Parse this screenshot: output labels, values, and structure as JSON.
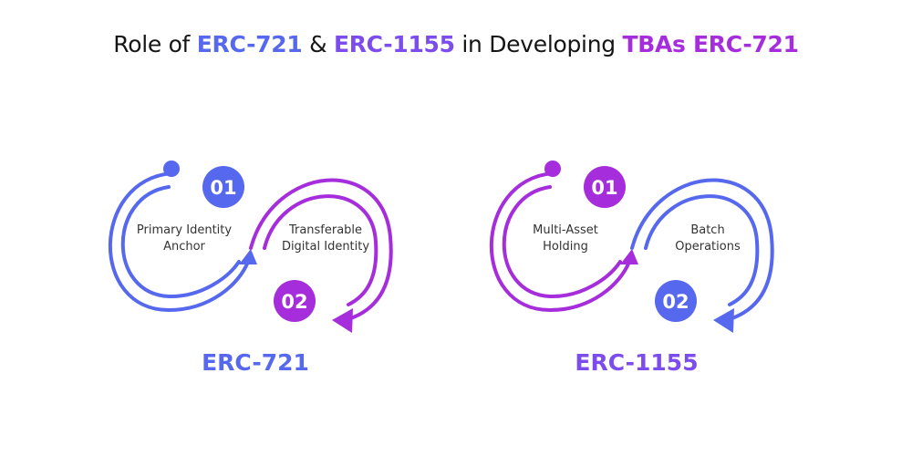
{
  "title": {
    "prefix": "Role of ",
    "part1": "ERC-721",
    "amp": " & ",
    "part2": "ERC-1155",
    "middle": " in Developing ",
    "part3": "TBAs ERC-721"
  },
  "colors": {
    "blue": "#5568ee",
    "purple": "#a52ddb",
    "violet": "#7d4cec"
  },
  "groups": [
    {
      "caption": "ERC-721",
      "items": [
        {
          "number": "01",
          "label_line1": "Primary Identity",
          "label_line2": "Anchor"
        },
        {
          "number": "02",
          "label_line1": "Transferable",
          "label_line2": "Digital Identity"
        }
      ]
    },
    {
      "caption": "ERC-1155",
      "items": [
        {
          "number": "01",
          "label_line1": "Multi-Asset",
          "label_line2": "Holding"
        },
        {
          "number": "02",
          "label_line1": "Batch",
          "label_line2": "Operations"
        }
      ]
    }
  ]
}
